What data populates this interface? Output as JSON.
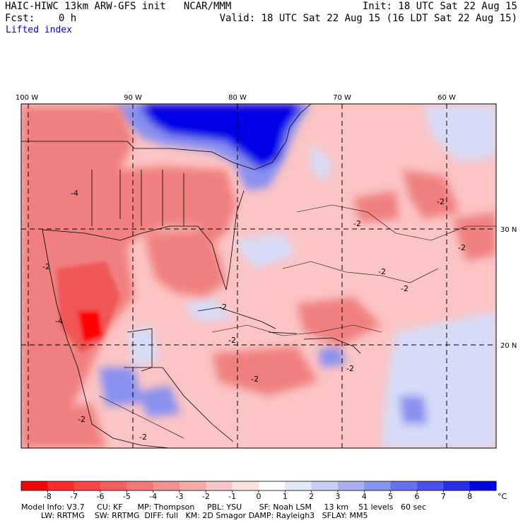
{
  "header": {
    "title": "HAIC-HIWC 13km ARW-GFS init   NCAR/MMM",
    "fcst": "Fcst:    0 h",
    "init": "Init: 18 UTC Sat 22 Aug 15",
    "valid": "Valid: 18 UTC Sat 22 Aug 15 (16 LDT Sat 22 Aug 15)",
    "param": "Lifted index"
  },
  "map": {
    "lon_labels": [
      "100 W",
      "90 W",
      "80 W",
      "70 W",
      "60 W"
    ],
    "lat_labels": [
      "30 N",
      "20 N"
    ],
    "contour_label": "-2",
    "contour_label_4": "-4",
    "colors": {
      "neg_strong": "#ff0000",
      "neg_mid": "#f08080",
      "neg_light": "#fcc4c4",
      "neutral": "#ffffff",
      "pos_light": "#d6dcf8",
      "pos_mid": "#8890f0",
      "pos_strong": "#0000e6"
    }
  },
  "colorbar": {
    "ticks": [
      "-8",
      "-7",
      "-6",
      "-5",
      "-4",
      "-3",
      "-2",
      "-1",
      "0",
      "1",
      "2",
      "3",
      "4",
      "5",
      "6",
      "7",
      "8"
    ],
    "unit": "°C",
    "colors": [
      "#ff0000",
      "#ff2a2a",
      "#ff4545",
      "#f86060",
      "#f47878",
      "#f29292",
      "#f6aaaa",
      "#fac6c6",
      "#fde2e2",
      "#ffffff",
      "#e4e8fb",
      "#c8cef6",
      "#a8b0f2",
      "#8a92ef",
      "#6872ec",
      "#4a50ea",
      "#2a2ee8",
      "#0000e6"
    ]
  },
  "footer": {
    "line1": "Model Info: V3.7     CU: KF      MP: Thompson     PBL: YSU       SF: Noah LSM     13 km    51 levels   60 sec",
    "line2": "        LW: RRTMG    SW: RRTMG  DIFF: full   KM: 2D Smagor DAMP: Rayleigh3   SFLAY: MM5"
  }
}
